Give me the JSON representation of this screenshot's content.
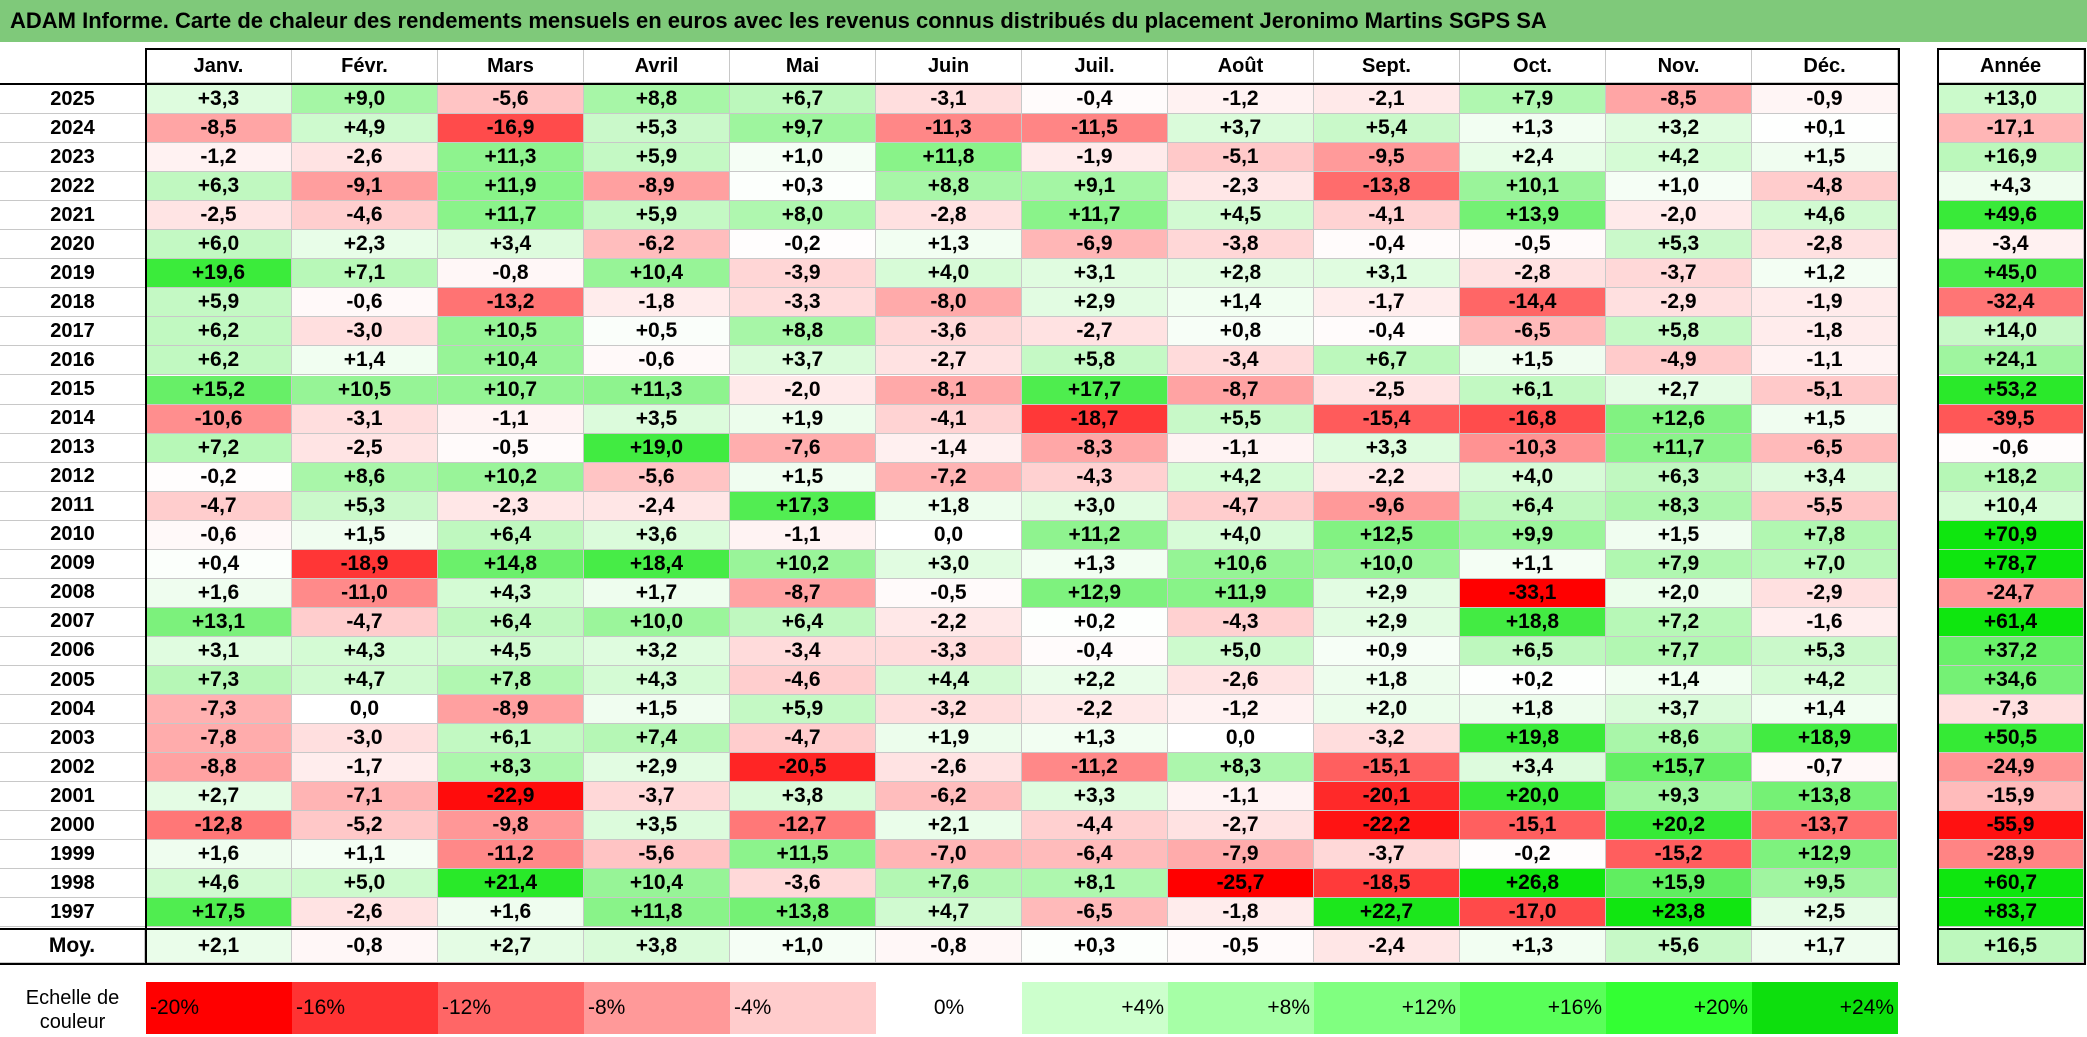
{
  "title": "ADAM Informe. Carte de chaleur des rendements mensuels en euros avec les revenus connus distribués du placement Jeronimo Martins SGPS SA",
  "chart_data": {
    "type": "heatmap",
    "title": "ADAM Informe. Carte de chaleur des rendements mensuels en euros avec les revenus connus distribués du placement Jeronimo Martins SGPS SA",
    "columns": [
      "Janv.",
      "Févr.",
      "Mars",
      "Avril",
      "Mai",
      "Juin",
      "Juil.",
      "Août",
      "Sept.",
      "Oct.",
      "Nov.",
      "Déc."
    ],
    "year_column_label": "Année",
    "rows": [
      {
        "year": "2025",
        "values": [
          "+3,3",
          "+9,0",
          "-5,6",
          "+8,8",
          "+6,7",
          "-3,1",
          "-0,4",
          "-1,2",
          "-2,1",
          "+7,9",
          "-8,5",
          "-0,9"
        ],
        "annual": "+13,0"
      },
      {
        "year": "2024",
        "values": [
          "-8,5",
          "+4,9",
          "-16,9",
          "+5,3",
          "+9,7",
          "-11,3",
          "-11,5",
          "+3,7",
          "+5,4",
          "+1,3",
          "+3,2",
          "+0,1"
        ],
        "annual": "-17,1"
      },
      {
        "year": "2023",
        "values": [
          "-1,2",
          "-2,6",
          "+11,3",
          "+5,9",
          "+1,0",
          "+11,8",
          "-1,9",
          "-5,1",
          "-9,5",
          "+2,4",
          "+4,2",
          "+1,5"
        ],
        "annual": "+16,9"
      },
      {
        "year": "2022",
        "values": [
          "+6,3",
          "-9,1",
          "+11,9",
          "-8,9",
          "+0,3",
          "+8,8",
          "+9,1",
          "-2,3",
          "-13,8",
          "+10,1",
          "+1,0",
          "-4,8"
        ],
        "annual": "+4,3"
      },
      {
        "year": "2021",
        "values": [
          "-2,5",
          "-4,6",
          "+11,7",
          "+5,9",
          "+8,0",
          "-2,8",
          "+11,7",
          "+4,5",
          "-4,1",
          "+13,9",
          "-2,0",
          "+4,6"
        ],
        "annual": "+49,6"
      },
      {
        "year": "2020",
        "values": [
          "+6,0",
          "+2,3",
          "+3,4",
          "-6,2",
          "-0,2",
          "+1,3",
          "-6,9",
          "-3,8",
          "-0,4",
          "-0,5",
          "+5,3",
          "-2,8"
        ],
        "annual": "-3,4"
      },
      {
        "year": "2019",
        "values": [
          "+19,6",
          "+7,1",
          "-0,8",
          "+10,4",
          "-3,9",
          "+4,0",
          "+3,1",
          "+2,8",
          "+3,1",
          "-2,8",
          "-3,7",
          "+1,2"
        ],
        "annual": "+45,0"
      },
      {
        "year": "2018",
        "values": [
          "+5,9",
          "-0,6",
          "-13,2",
          "-1,8",
          "-3,3",
          "-8,0",
          "+2,9",
          "+1,4",
          "-1,7",
          "-14,4",
          "-2,9",
          "-1,9"
        ],
        "annual": "-32,4"
      },
      {
        "year": "2017",
        "values": [
          "+6,2",
          "-3,0",
          "+10,5",
          "+0,5",
          "+8,8",
          "-3,6",
          "-2,7",
          "+0,8",
          "-0,4",
          "-6,5",
          "+5,8",
          "-1,8"
        ],
        "annual": "+14,0"
      },
      {
        "year": "2016",
        "values": [
          "+6,2",
          "+1,4",
          "+10,4",
          "-0,6",
          "+3,7",
          "-2,7",
          "+5,8",
          "-3,4",
          "+6,7",
          "+1,5",
          "-4,9",
          "-1,1"
        ],
        "annual": "+24,1"
      },
      {
        "year": "2015",
        "values": [
          "+15,2",
          "+10,5",
          "+10,7",
          "+11,3",
          "-2,0",
          "-8,1",
          "+17,7",
          "-8,7",
          "-2,5",
          "+6,1",
          "+2,7",
          "-5,1"
        ],
        "annual": "+53,2"
      },
      {
        "year": "2014",
        "values": [
          "-10,6",
          "-3,1",
          "-1,1",
          "+3,5",
          "+1,9",
          "-4,1",
          "-18,7",
          "+5,5",
          "-15,4",
          "-16,8",
          "+12,6",
          "+1,5"
        ],
        "annual": "-39,5"
      },
      {
        "year": "2013",
        "values": [
          "+7,2",
          "-2,5",
          "-0,5",
          "+19,0",
          "-7,6",
          "-1,4",
          "-8,3",
          "-1,1",
          "+3,3",
          "-10,3",
          "+11,7",
          "-6,5"
        ],
        "annual": "-0,6"
      },
      {
        "year": "2012",
        "values": [
          "-0,2",
          "+8,6",
          "+10,2",
          "-5,6",
          "+1,5",
          "-7,2",
          "-4,3",
          "+4,2",
          "-2,2",
          "+4,0",
          "+6,3",
          "+3,4"
        ],
        "annual": "+18,2"
      },
      {
        "year": "2011",
        "values": [
          "-4,7",
          "+5,3",
          "-2,3",
          "-2,4",
          "+17,3",
          "+1,8",
          "+3,0",
          "-4,7",
          "-9,6",
          "+6,4",
          "+8,3",
          "-5,5"
        ],
        "annual": "+10,4"
      },
      {
        "year": "2010",
        "values": [
          "-0,6",
          "+1,5",
          "+6,4",
          "+3,6",
          "-1,1",
          "0,0",
          "+11,2",
          "+4,0",
          "+12,5",
          "+9,9",
          "+1,5",
          "+7,8"
        ],
        "annual": "+70,9"
      },
      {
        "year": "2009",
        "values": [
          "+0,4",
          "-18,9",
          "+14,8",
          "+18,4",
          "+10,2",
          "+3,0",
          "+1,3",
          "+10,6",
          "+10,0",
          "+1,1",
          "+7,9",
          "+7,0"
        ],
        "annual": "+78,7"
      },
      {
        "year": "2008",
        "values": [
          "+1,6",
          "-11,0",
          "+4,3",
          "+1,7",
          "-8,7",
          "-0,5",
          "+12,9",
          "+11,9",
          "+2,9",
          "-33,1",
          "+2,0",
          "-2,9"
        ],
        "annual": "-24,7"
      },
      {
        "year": "2007",
        "values": [
          "+13,1",
          "-4,7",
          "+6,4",
          "+10,0",
          "+6,4",
          "-2,2",
          "+0,2",
          "-4,3",
          "+2,9",
          "+18,8",
          "+7,2",
          "-1,6"
        ],
        "annual": "+61,4"
      },
      {
        "year": "2006",
        "values": [
          "+3,1",
          "+4,3",
          "+4,5",
          "+3,2",
          "-3,4",
          "-3,3",
          "-0,4",
          "+5,0",
          "+0,9",
          "+6,5",
          "+7,7",
          "+5,3"
        ],
        "annual": "+37,2"
      },
      {
        "year": "2005",
        "values": [
          "+7,3",
          "+4,7",
          "+7,8",
          "+4,3",
          "-4,6",
          "+4,4",
          "+2,2",
          "-2,6",
          "+1,8",
          "+0,2",
          "+1,4",
          "+4,2"
        ],
        "annual": "+34,6"
      },
      {
        "year": "2004",
        "values": [
          "-7,3",
          "0,0",
          "-8,9",
          "+1,5",
          "+5,9",
          "-3,2",
          "-2,2",
          "-1,2",
          "+2,0",
          "+1,8",
          "+3,7",
          "+1,4"
        ],
        "annual": "-7,3"
      },
      {
        "year": "2003",
        "values": [
          "-7,8",
          "-3,0",
          "+6,1",
          "+7,4",
          "-4,7",
          "+1,9",
          "+1,3",
          "0,0",
          "-3,2",
          "+19,8",
          "+8,6",
          "+18,9"
        ],
        "annual": "+50,5"
      },
      {
        "year": "2002",
        "values": [
          "-8,8",
          "-1,7",
          "+8,3",
          "+2,9",
          "-20,5",
          "-2,6",
          "-11,2",
          "+8,3",
          "-15,1",
          "+3,4",
          "+15,7",
          "-0,7"
        ],
        "annual": "-24,9"
      },
      {
        "year": "2001",
        "values": [
          "+2,7",
          "-7,1",
          "-22,9",
          "-3,7",
          "+3,8",
          "-6,2",
          "+3,3",
          "-1,1",
          "-20,1",
          "+20,0",
          "+9,3",
          "+13,8"
        ],
        "annual": "-15,9"
      },
      {
        "year": "2000",
        "values": [
          "-12,8",
          "-5,2",
          "-9,8",
          "+3,5",
          "-12,7",
          "+2,1",
          "-4,4",
          "-2,7",
          "-22,2",
          "-15,1",
          "+20,2",
          "-13,7"
        ],
        "annual": "-55,9"
      },
      {
        "year": "1999",
        "values": [
          "+1,6",
          "+1,1",
          "-11,2",
          "-5,6",
          "+11,5",
          "-7,0",
          "-6,4",
          "-7,9",
          "-3,7",
          "-0,2",
          "-15,2",
          "+12,9"
        ],
        "annual": "-28,9"
      },
      {
        "year": "1998",
        "values": [
          "+4,6",
          "+5,0",
          "+21,4",
          "+10,4",
          "-3,6",
          "+7,6",
          "+8,1",
          "-25,7",
          "-18,5",
          "+26,8",
          "+15,9",
          "+9,5"
        ],
        "annual": "+60,7"
      },
      {
        "year": "1997",
        "values": [
          "+17,5",
          "-2,6",
          "+1,6",
          "+11,8",
          "+13,8",
          "+4,7",
          "-6,5",
          "-1,8",
          "+22,7",
          "-17,0",
          "+23,8",
          "+2,5"
        ],
        "annual": "+83,7"
      }
    ],
    "average": {
      "label": "Moy.",
      "values": [
        "+2,1",
        "-0,8",
        "+2,7",
        "+3,8",
        "+1,0",
        "-0,8",
        "+0,3",
        "-0,5",
        "-2,4",
        "+1,3",
        "+5,6",
        "+1,7"
      ],
      "annual": "+16,5"
    },
    "legend": {
      "title_line1": "Echelle de",
      "title_line2": "couleur",
      "steps": [
        {
          "label": "-20%",
          "value": -20,
          "color": "#ff0000"
        },
        {
          "label": "-16%",
          "value": -16,
          "color": "#ff3333"
        },
        {
          "label": "-12%",
          "value": -12,
          "color": "#ff6666"
        },
        {
          "label": "-8%",
          "value": -8,
          "color": "#ff9999"
        },
        {
          "label": "-4%",
          "value": -4,
          "color": "#ffcccc"
        },
        {
          "label": "0%",
          "value": 0,
          "color": "#ffffff"
        },
        {
          "label": "+4%",
          "value": 4,
          "color": "#ccffcc"
        },
        {
          "label": "+8%",
          "value": 8,
          "color": "#a6ffa6"
        },
        {
          "label": "+12%",
          "value": 12,
          "color": "#80ff80"
        },
        {
          "label": "+16%",
          "value": 16,
          "color": "#59ff59"
        },
        {
          "label": "+20%",
          "value": 20,
          "color": "#33ff33"
        },
        {
          "label": "+24%",
          "value": 24,
          "color": "#0ddf0d"
        }
      ]
    },
    "scales": {
      "monthly_max_abs": 24,
      "annual_max_abs": 60
    }
  },
  "colors": {
    "title_bar": "#7fc97a",
    "negative_full": "#ff0000",
    "positive_full": "#0fe60f",
    "neutral": "#ffffff"
  }
}
